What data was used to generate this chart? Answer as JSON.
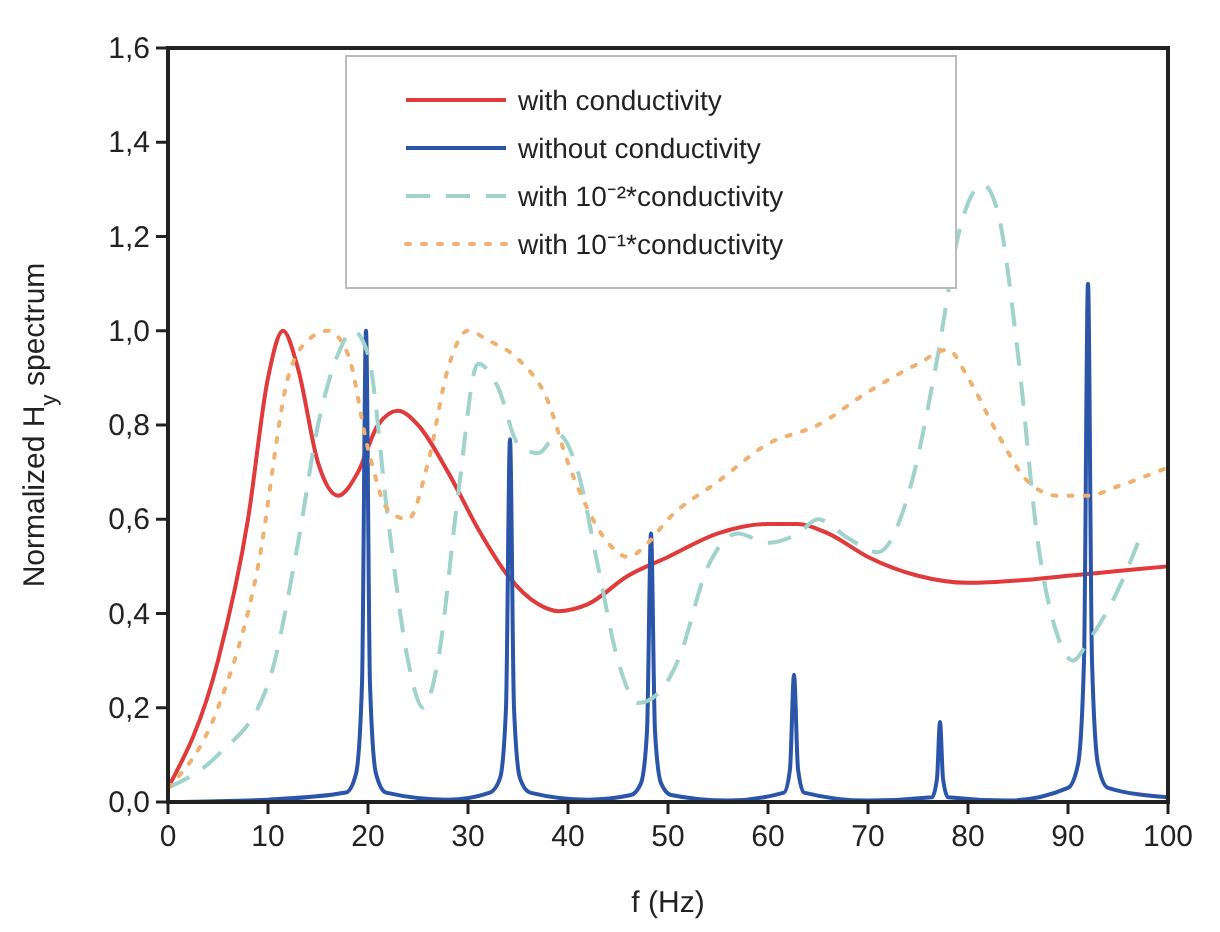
{
  "chart_data": {
    "type": "line",
    "xlabel": "f (Hz)",
    "ylabel": "Normalized H$_{y}$ spectrum",
    "xlim": [
      0,
      100
    ],
    "xticks": [
      0,
      10,
      20,
      30,
      40,
      50,
      60,
      70,
      80,
      90,
      100
    ],
    "ylim": [
      0,
      1.6
    ],
    "yticks": [
      {
        "value": 0,
        "label": "0,0"
      },
      {
        "value": 0.2,
        "label": "0,2"
      },
      {
        "value": 0.4,
        "label": "0,4"
      },
      {
        "value": 0.6,
        "label": "0,6"
      },
      {
        "value": 0.8,
        "label": "0,8"
      },
      {
        "value": 1.0,
        "label": "1,0"
      },
      {
        "value": 1.2,
        "label": "1,2"
      },
      {
        "value": 1.4,
        "label": "1,4"
      },
      {
        "value": 1.6,
        "label": "1,6"
      }
    ],
    "grid": false,
    "legend": "top",
    "marker": "none",
    "series": [
      {
        "name": "with conductivity",
        "color": "#e03a3a",
        "line_style": "solid",
        "x": [
          0,
          5,
          8,
          10,
          11.5,
          13,
          15,
          17,
          19,
          21,
          23,
          25,
          28,
          31,
          34,
          37,
          39,
          42,
          46,
          50,
          55,
          60,
          63,
          66,
          70,
          75,
          80,
          85,
          90,
          95,
          100
        ],
        "values": [
          0.03,
          0.3,
          0.6,
          0.9,
          1.0,
          0.92,
          0.72,
          0.65,
          0.7,
          0.8,
          0.83,
          0.8,
          0.7,
          0.58,
          0.48,
          0.42,
          0.405,
          0.42,
          0.48,
          0.52,
          0.57,
          0.59,
          0.59,
          0.57,
          0.52,
          0.48,
          0.465,
          0.47,
          0.48,
          0.49,
          0.5
        ]
      },
      {
        "name": "without conductivity",
        "color": "#2a55a8",
        "line_style": "solid",
        "x": [
          0,
          10,
          17.8,
          18.8,
          19.4,
          19.8,
          20.2,
          20.8,
          21.8,
          28,
          32.2,
          33.2,
          33.8,
          34.2,
          34.6,
          35.2,
          36.2,
          42,
          46.3,
          47.3,
          47.9,
          48.3,
          48.7,
          49.3,
          50.3,
          56,
          61.6,
          62.2,
          62.6,
          63,
          63.6,
          70,
          76.4,
          76.9,
          77.2,
          77.5,
          78,
          84,
          90,
          91,
          91.6,
          92,
          92.4,
          93,
          94,
          100
        ],
        "values": [
          0,
          0.005,
          0.02,
          0.06,
          0.25,
          1.0,
          0.25,
          0.06,
          0.02,
          0.005,
          0.02,
          0.05,
          0.2,
          0.77,
          0.2,
          0.05,
          0.02,
          0.005,
          0.015,
          0.04,
          0.15,
          0.57,
          0.15,
          0.04,
          0.015,
          0.003,
          0.02,
          0.07,
          0.27,
          0.07,
          0.02,
          0.003,
          0.01,
          0.05,
          0.17,
          0.05,
          0.01,
          0.003,
          0.03,
          0.08,
          0.3,
          1.1,
          0.3,
          0.08,
          0.03,
          0.01
        ]
      },
      {
        "name": "with 10⁻²*conductivity",
        "color": "#9fd3cc",
        "line_style": "dashed",
        "x": [
          0,
          5,
          10,
          13,
          15,
          17,
          18.5,
          20,
          22,
          24,
          25.5,
          27,
          29,
          31,
          33,
          35,
          37,
          39,
          41,
          43,
          45,
          47,
          49,
          51,
          54,
          57,
          60,
          63,
          65,
          68,
          71,
          74,
          77,
          79,
          81.5,
          83,
          85,
          87,
          89,
          90.5,
          92,
          95,
          97
        ],
        "values": [
          0.03,
          0.1,
          0.25,
          0.55,
          0.8,
          0.95,
          1.0,
          0.95,
          0.6,
          0.3,
          0.2,
          0.3,
          0.65,
          0.93,
          0.88,
          0.76,
          0.74,
          0.78,
          0.7,
          0.5,
          0.3,
          0.21,
          0.23,
          0.3,
          0.5,
          0.57,
          0.55,
          0.57,
          0.6,
          0.56,
          0.53,
          0.65,
          0.95,
          1.2,
          1.31,
          1.25,
          0.95,
          0.55,
          0.35,
          0.3,
          0.34,
          0.45,
          0.55
        ]
      },
      {
        "name": "with 10⁻¹*conductivity",
        "color": "#f0b070",
        "line_style": "dotted",
        "x": [
          0,
          5,
          9,
          12,
          14,
          16,
          18,
          20,
          22,
          24,
          26,
          28,
          30,
          32,
          35,
          38,
          40,
          42,
          44,
          46,
          48,
          50,
          55,
          60,
          65,
          70,
          75,
          78,
          80,
          83,
          86,
          89,
          92,
          95,
          100
        ],
        "values": [
          0.03,
          0.2,
          0.5,
          0.9,
          0.98,
          1.0,
          0.95,
          0.75,
          0.62,
          0.6,
          0.72,
          0.92,
          1.0,
          0.98,
          0.94,
          0.85,
          0.72,
          0.62,
          0.55,
          0.52,
          0.55,
          0.6,
          0.68,
          0.76,
          0.8,
          0.87,
          0.93,
          0.96,
          0.9,
          0.78,
          0.68,
          0.65,
          0.65,
          0.67,
          0.71
        ]
      }
    ]
  }
}
